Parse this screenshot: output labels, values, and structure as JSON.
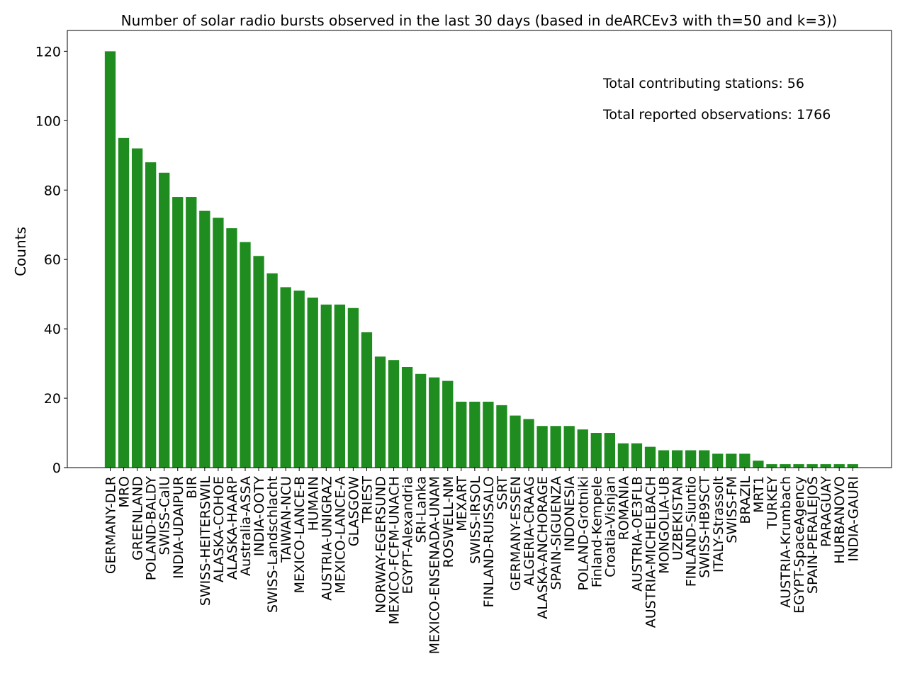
{
  "colors": {
    "bar": "#1e8c1e",
    "axis": "#000000",
    "background": "#ffffff"
  },
  "chart_data": {
    "type": "bar",
    "title": "Number of solar radio bursts observed in the last 30 days (based in deARCEv3 with th=50 and k=3))",
    "xlabel": "",
    "ylabel": "Counts",
    "ylim": [
      0,
      126
    ],
    "yticks": [
      0,
      20,
      40,
      60,
      80,
      100,
      120
    ],
    "grid": false,
    "annotations": [
      "Total contributing stations: 56",
      "Total reported observations: 1766"
    ],
    "categories": [
      "GERMANY-DLR",
      "MRO",
      "GREENLAND",
      "POLAND-BALDY",
      "SWISS-CalU",
      "INDIA-UDAIPUR",
      "BIR",
      "SWISS-HEITERSWIL",
      "ALASKA-COHOE",
      "ALASKA-HAARP",
      "Australia-ASSA",
      "INDIA-OOTY",
      "SWISS-Landschlacht",
      "TAIWAN-NCU",
      "MEXICO-LANCE-B",
      "HUMAIN",
      "AUSTRIA-UNIGRAZ",
      "MEXICO-LANCE-A",
      "GLASGOW",
      "TRIEST",
      "NORWAY-EGERSUND",
      "MEXICO-FCFM-UNACH",
      "EGYPT-Alexandria",
      "SRI-Lanka",
      "MEXICO-ENSENADA-UNAM",
      "ROSWELL-NM",
      "MEXART",
      "SWISS-IRSOL",
      "FINLAND-RUISSALO",
      "SSRT",
      "GERMANY-ESSEN",
      "ALGERIA-CRAAG",
      "ALASKA-ANCHORAGE",
      "SPAIN-SIGUENZA",
      "INDONESIA",
      "POLAND-Grotniki",
      "Finland-Kempele",
      "Croatia-Visnjan",
      "ROMANIA",
      "AUSTRIA-OE3FLB",
      "AUSTRIA-MICHELBACH",
      "MONGOLIA-UB",
      "UZBEKISTAN",
      "FINLAND-Siuntio",
      "SWISS-HB9SCT",
      "ITALY-Strassolt",
      "SWISS-FM",
      "BRAZIL",
      "MRT1",
      "TURKEY",
      "AUSTRIA-Krumbach",
      "EGYPT-SpaceAgency",
      "SPAIN-PERALEJOS",
      "PARAGUAY",
      "HURBANOVO",
      "INDIA-GAURI"
    ],
    "values": [
      120,
      95,
      92,
      88,
      85,
      78,
      78,
      74,
      72,
      69,
      65,
      61,
      56,
      52,
      51,
      49,
      47,
      47,
      46,
      39,
      32,
      31,
      29,
      27,
      26,
      25,
      19,
      19,
      19,
      18,
      15,
      14,
      12,
      12,
      12,
      11,
      10,
      10,
      7,
      7,
      6,
      5,
      5,
      5,
      5,
      4,
      4,
      4,
      2,
      1,
      1,
      1,
      1,
      1,
      1,
      1
    ]
  }
}
